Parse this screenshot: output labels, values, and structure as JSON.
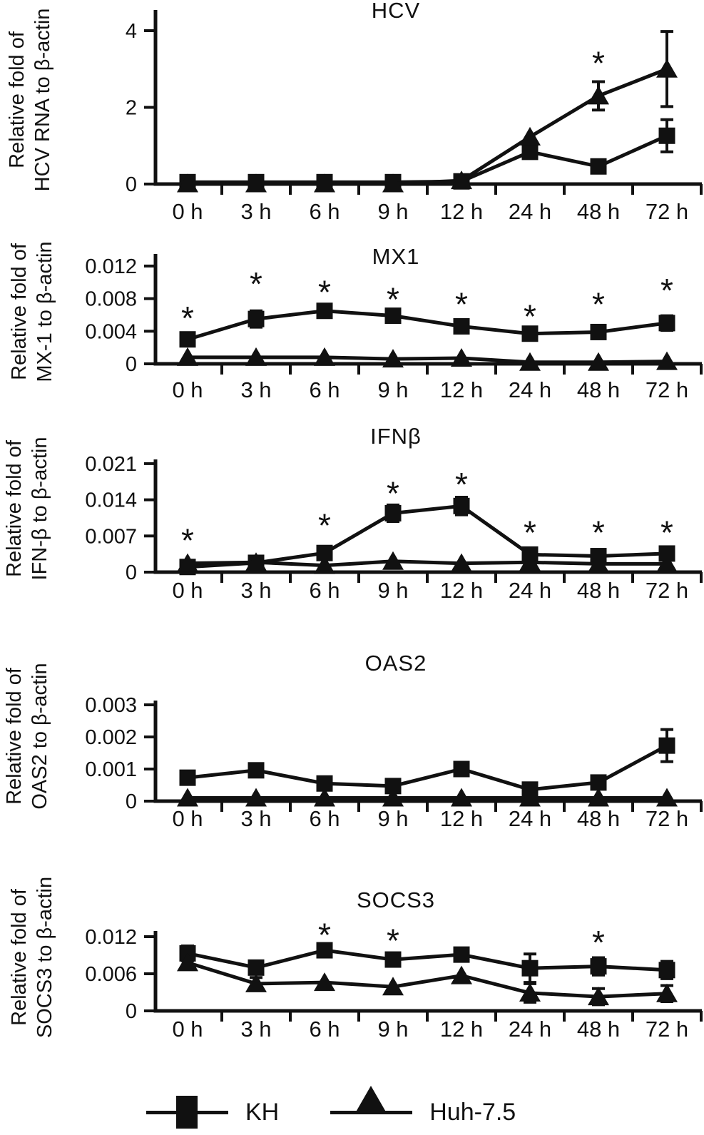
{
  "figure": {
    "background": "#ffffff",
    "ink": "#111111"
  },
  "legend": {
    "items": [
      {
        "label": "KH",
        "marker": "square"
      },
      {
        "label": "Huh-7.5",
        "marker": "triangle"
      }
    ]
  },
  "chart_data": [
    {
      "type": "line",
      "title": "HCV",
      "ylabel_line1": "Relative fold of",
      "ylabel_line2": "HCV RNA to β-actin",
      "categories": [
        "0 h",
        "3 h",
        "6 h",
        "9 h",
        "12 h",
        "24 h",
        "48 h",
        "72 h"
      ],
      "yticks": [
        {
          "value": 0,
          "label": "0"
        },
        {
          "value": 2,
          "label": "2"
        },
        {
          "value": 4,
          "label": "4"
        }
      ],
      "ylim": [
        0,
        4.5
      ],
      "grid": false,
      "series": [
        {
          "name": "KH",
          "marker": "square",
          "values": [
            0.05,
            0.05,
            0.05,
            0.05,
            0.07,
            0.84,
            0.46,
            1.26
          ],
          "errors": [
            0,
            0,
            0,
            0,
            0,
            0.08,
            0.06,
            0.42
          ]
        },
        {
          "name": "Huh-7.5",
          "marker": "triangle",
          "values": [
            0.01,
            0.01,
            0.01,
            0.01,
            0.09,
            1.23,
            2.3,
            3.0
          ],
          "errors": [
            0,
            0,
            0,
            0,
            0,
            0.12,
            0.37,
            0.98
          ]
        }
      ],
      "asterisks": [
        {
          "cat": "48 h",
          "v": 3.32
        }
      ]
    },
    {
      "type": "line",
      "title": "MX1",
      "ylabel_line1": "Relative fold of",
      "ylabel_line2": "MX-1 to β-actin",
      "categories": [
        "0 h",
        "3 h",
        "6 h",
        "9 h",
        "12 h",
        "24 h",
        "48 h",
        "72 h"
      ],
      "yticks": [
        {
          "value": 0,
          "label": "0"
        },
        {
          "value": 0.004,
          "label": "0.004"
        },
        {
          "value": 0.008,
          "label": "0.008"
        },
        {
          "value": 0.012,
          "label": "0.012"
        }
      ],
      "ylim": [
        0,
        0.0135
      ],
      "grid": false,
      "series": [
        {
          "name": "KH",
          "marker": "square",
          "values": [
            0.003,
            0.0055,
            0.0065,
            0.0059,
            0.0046,
            0.0037,
            0.0039,
            0.005
          ],
          "errors": [
            0.0004,
            0.001,
            0.0008,
            0.0006,
            0.0004,
            0.0004,
            0.0003,
            0.0009
          ]
        },
        {
          "name": "Huh-7.5",
          "marker": "triangle",
          "values": [
            0.0008,
            0.0008,
            0.0008,
            0.0006,
            0.0007,
            0.0002,
            0.0002,
            0.0003
          ],
          "errors": [
            0.0002,
            0.0002,
            0.0003,
            0.0002,
            0.0002,
            0.0001,
            0.0001,
            0.0001
          ]
        }
      ],
      "asterisks": [
        {
          "cat": "0 h",
          "v": 0.0064
        },
        {
          "cat": "3 h",
          "v": 0.0106
        },
        {
          "cat": "6 h",
          "v": 0.0096
        },
        {
          "cat": "9 h",
          "v": 0.0087
        },
        {
          "cat": "12 h",
          "v": 0.0081
        },
        {
          "cat": "24 h",
          "v": 0.0066
        },
        {
          "cat": "48 h",
          "v": 0.0081
        },
        {
          "cat": "72 h",
          "v": 0.0098
        }
      ]
    },
    {
      "type": "line",
      "title": "IFNβ",
      "ylabel_line1": "Relative fold of",
      "ylabel_line2": "IFN-β to β-actin",
      "categories": [
        "0 h",
        "3 h",
        "6 h",
        "9 h",
        "12 h",
        "24 h",
        "48 h",
        "72 h"
      ],
      "yticks": [
        {
          "value": 0,
          "label": "0"
        },
        {
          "value": 0.007,
          "label": "0.007"
        },
        {
          "value": 0.014,
          "label": "0.014"
        },
        {
          "value": 0.021,
          "label": "0.021"
        }
      ],
      "ylim": [
        0,
        0.0218
      ],
      "grid": false,
      "series": [
        {
          "name": "KH",
          "marker": "square",
          "values": [
            0.001,
            0.0018,
            0.0037,
            0.0114,
            0.0128,
            0.0034,
            0.0031,
            0.0036
          ],
          "errors": [
            0.0004,
            0.0003,
            0.0007,
            0.0016,
            0.0017,
            0.0006,
            0.0005,
            0.0006
          ]
        },
        {
          "name": "Huh-7.5",
          "marker": "triangle",
          "values": [
            0.0017,
            0.0019,
            0.0013,
            0.0021,
            0.0017,
            0.0019,
            0.0016,
            0.0016
          ],
          "errors": [
            0.0003,
            0.0002,
            0.0003,
            0.0005,
            0.0002,
            0.0003,
            0.0002,
            0.0002
          ]
        }
      ],
      "asterisks": [
        {
          "cat": "0 h",
          "v": 0.0074
        },
        {
          "cat": "6 h",
          "v": 0.0103
        },
        {
          "cat": "9 h",
          "v": 0.0165
        },
        {
          "cat": "12 h",
          "v": 0.0182
        },
        {
          "cat": "24 h",
          "v": 0.0089
        },
        {
          "cat": "48 h",
          "v": 0.0089
        },
        {
          "cat": "72 h",
          "v": 0.0089
        }
      ]
    },
    {
      "type": "line",
      "title": "OAS2",
      "ylabel_line1": "Relative fold of",
      "ylabel_line2": "OAS2 to β-actin",
      "categories": [
        "0 h",
        "3 h",
        "6 h",
        "9 h",
        "12 h",
        "24 h",
        "48 h",
        "72 h"
      ],
      "yticks": [
        {
          "value": 0,
          "label": "0"
        },
        {
          "value": 0.001,
          "label": "0.001"
        },
        {
          "value": 0.002,
          "label": "0.002"
        },
        {
          "value": 0.003,
          "label": "0.003"
        }
      ],
      "ylim": [
        0,
        0.0031
      ],
      "grid": false,
      "series": [
        {
          "name": "KH",
          "marker": "square",
          "values": [
            0.00073,
            0.00096,
            0.00055,
            0.00047,
            0.001,
            0.00036,
            0.00058,
            0.00173
          ],
          "errors": [
            0.0001,
            0.0002,
            0.0002,
            0.0002,
            0.0001,
            0.0001,
            0.0001,
            0.0005
          ]
        },
        {
          "name": "Huh-7.5",
          "marker": "triangle",
          "values": [
            0.0001,
            0.0001,
            0.0001,
            0.0001,
            0.0001,
            0.0001,
            0.0001,
            0.0001
          ],
          "errors": [
            0,
            0,
            0,
            0,
            0,
            0,
            0,
            0
          ]
        }
      ],
      "asterisks": []
    },
    {
      "type": "line",
      "title": "SOCS3",
      "ylabel_line1": "Relative fold of",
      "ylabel_line2": "SOCS3 to β-actin",
      "categories": [
        "0 h",
        "3 h",
        "6 h",
        "9 h",
        "12 h",
        "24 h",
        "48 h",
        "72 h"
      ],
      "yticks": [
        {
          "value": 0,
          "label": "0"
        },
        {
          "value": 0.006,
          "label": "0.006"
        },
        {
          "value": 0.012,
          "label": "0.012"
        }
      ],
      "ylim": [
        0,
        0.0129
      ],
      "grid": false,
      "series": [
        {
          "name": "KH",
          "marker": "square",
          "values": [
            0.0093,
            0.007,
            0.0098,
            0.0083,
            0.0091,
            0.0069,
            0.0072,
            0.0066
          ],
          "errors": [
            0.0012,
            0.0006,
            0.0007,
            0.0008,
            0.0004,
            0.0023,
            0.0014,
            0.0014
          ]
        },
        {
          "name": "Huh-7.5",
          "marker": "triangle",
          "values": [
            0.0078,
            0.0044,
            0.0046,
            0.0039,
            0.0057,
            0.0029,
            0.0023,
            0.0028
          ],
          "errors": [
            0.0008,
            0.001,
            0.0008,
            0.0008,
            0.0005,
            0.0015,
            0.0013,
            0.0013
          ]
        }
      ],
      "asterisks": [
        {
          "cat": "6 h",
          "v": 0.0133
        },
        {
          "cat": "9 h",
          "v": 0.0124
        },
        {
          "cat": "48 h",
          "v": 0.0121
        }
      ]
    }
  ]
}
